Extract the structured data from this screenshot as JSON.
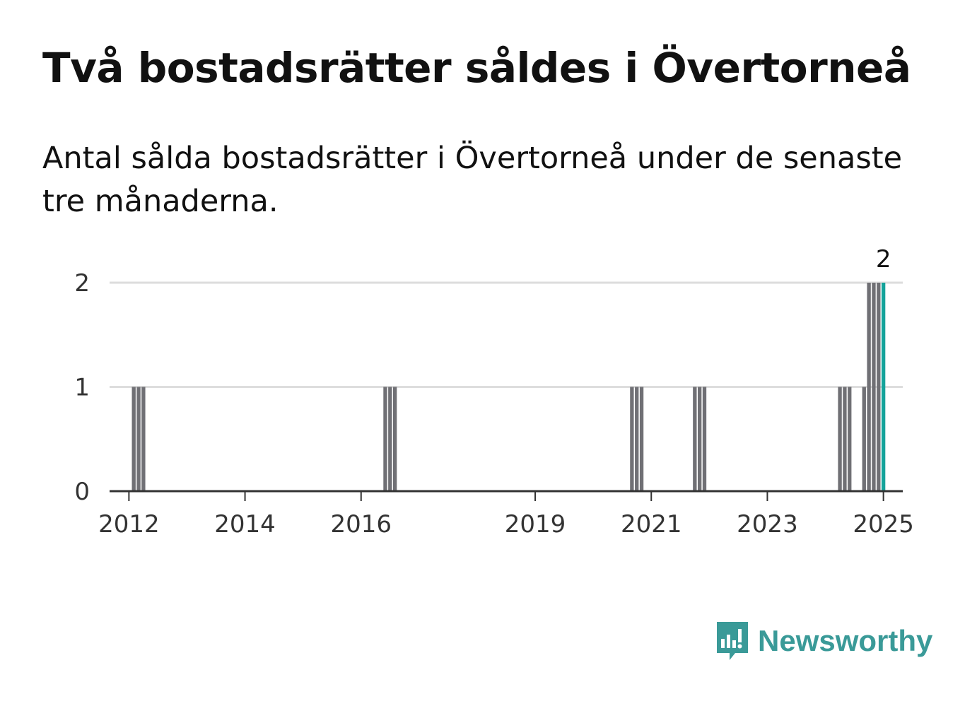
{
  "header": {
    "title": "Två bostadsrätter såldes i Övertorneå",
    "subtitle": "Antal sålda bostadsrätter i Övertorneå under de senaste tre månaderna."
  },
  "branding": {
    "name": "Newsworthy",
    "icon": "newsworthy-logo-icon",
    "color": "#3a9a98"
  },
  "colors": {
    "bar": "#707075",
    "highlight": "#14a39a",
    "grid": "#dddddd",
    "axis": "#333333"
  },
  "chart_data": {
    "type": "bar",
    "title": "",
    "xlabel": "",
    "ylabel": "",
    "ylim": [
      0,
      2
    ],
    "yticks": [
      0,
      1,
      2
    ],
    "xlim": [
      "2011-09",
      "2025-05"
    ],
    "xticks": [
      "2012",
      "2014",
      "2016",
      "2019",
      "2021",
      "2023",
      "2025"
    ],
    "grid": true,
    "series": [
      {
        "x": [
          "2012-02",
          "2012-03",
          "2012-04",
          "2016-06",
          "2016-07",
          "2016-08",
          "2020-09",
          "2020-10",
          "2020-11",
          "2021-10",
          "2021-11",
          "2021-12",
          "2024-04",
          "2024-05",
          "2024-06",
          "2024-09",
          "2024-10",
          "2024-11",
          "2024-12",
          "2025-01"
        ],
        "values": [
          1,
          1,
          1,
          1,
          1,
          1,
          1,
          1,
          1,
          1,
          1,
          1,
          1,
          1,
          1,
          1,
          2,
          2,
          2,
          2
        ]
      }
    ],
    "highlight": {
      "x": "2025-01",
      "value": 2,
      "label": "2"
    }
  }
}
